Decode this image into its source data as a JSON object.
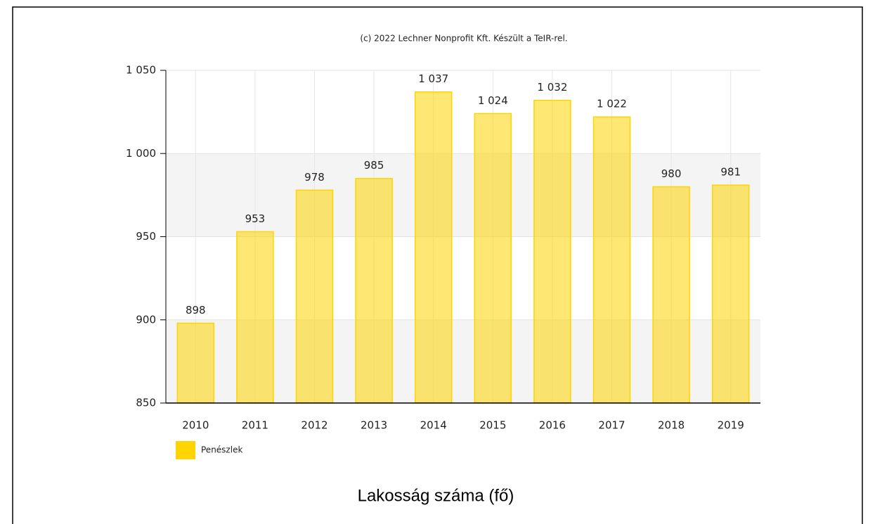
{
  "chart_data": {
    "type": "bar",
    "subtitle": "(c) 2022 Lechner Nonprofit Kft. Készült a TeIR-rel.",
    "title": "Lakosság száma (fő)",
    "categories": [
      "2010",
      "2011",
      "2012",
      "2013",
      "2014",
      "2015",
      "2016",
      "2017",
      "2018",
      "2019"
    ],
    "series": [
      {
        "name": "Penészlek",
        "color": "#ffd400",
        "values": [
          898,
          953,
          978,
          985,
          1037,
          1024,
          1032,
          1022,
          980,
          981
        ],
        "value_labels": [
          "898",
          "953",
          "978",
          "985",
          "1 037",
          "1 024",
          "1 032",
          "1 022",
          "980",
          "981"
        ]
      }
    ],
    "ylim": [
      850,
      1050
    ],
    "yticks": [
      850,
      900,
      950,
      {
        "value": 1000,
        "label": "1 000"
      },
      {
        "value": 1050,
        "label": "1 050"
      }
    ],
    "grid": true,
    "legend": "bottom-left"
  }
}
